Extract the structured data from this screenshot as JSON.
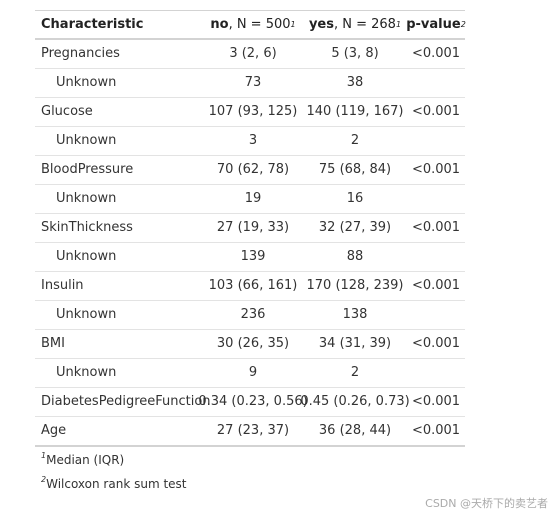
{
  "header": {
    "characteristic": "Characteristic",
    "no": {
      "group": "no",
      "n": ", N = 500",
      "footnote": "1"
    },
    "yes": {
      "group": "yes",
      "n": ", N = 268",
      "footnote": "1"
    },
    "p": {
      "label": "p-value",
      "footnote": "2"
    }
  },
  "variables": [
    {
      "label": "Pregnancies",
      "no": "3 (2, 6)",
      "yes": "5 (3, 8)",
      "p": "<0.001",
      "unknown": {
        "label": "Unknown",
        "no": "73",
        "yes": "38"
      }
    },
    {
      "label": "Glucose",
      "no": "107 (93, 125)",
      "yes": "140 (119, 167)",
      "p": "<0.001",
      "unknown": {
        "label": "Unknown",
        "no": "3",
        "yes": "2"
      }
    },
    {
      "label": "BloodPressure",
      "no": "70 (62, 78)",
      "yes": "75 (68, 84)",
      "p": "<0.001",
      "unknown": {
        "label": "Unknown",
        "no": "19",
        "yes": "16"
      }
    },
    {
      "label": "SkinThickness",
      "no": "27 (19, 33)",
      "yes": "32 (27, 39)",
      "p": "<0.001",
      "unknown": {
        "label": "Unknown",
        "no": "139",
        "yes": "88"
      }
    },
    {
      "label": "Insulin",
      "no": "103 (66, 161)",
      "yes": "170 (128, 239)",
      "p": "<0.001",
      "unknown": {
        "label": "Unknown",
        "no": "236",
        "yes": "138"
      }
    },
    {
      "label": "BMI",
      "no": "30 (26, 35)",
      "yes": "34 (31, 39)",
      "p": "<0.001",
      "unknown": {
        "label": "Unknown",
        "no": "9",
        "yes": "2"
      }
    },
    {
      "label": "DiabetesPedigreeFunction",
      "no": "0.34 (0.23, 0.56)",
      "yes": "0.45 (0.26, 0.73)",
      "p": "<0.001"
    },
    {
      "label": "Age",
      "no": "27 (23, 37)",
      "yes": "36 (28, 44)",
      "p": "<0.001"
    }
  ],
  "footnotes": [
    {
      "mark": "1",
      "text": "Median (IQR)"
    },
    {
      "mark": "2",
      "text": "Wilcoxon rank sum test"
    }
  ],
  "watermark": "CSDN @天桥下的卖艺者"
}
